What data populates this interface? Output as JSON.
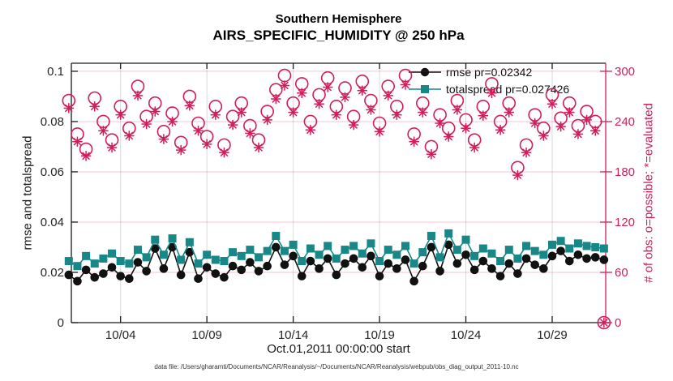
{
  "title": {
    "line1": "Southern Hemisphere",
    "line2": "AIRS_SPECIFIC_HUMIDITY @ 250 hPa"
  },
  "footer": {
    "data_file": "data file: /Users/gharamti/Documents/NCAR/Reanalysis/~/Documents/NCAR/Reanalysis/webpub/obs_diag_output_2011-10.nc"
  },
  "legend": {
    "items": [
      {
        "label": "rmse pr=0.02342",
        "marker": "filled-circle",
        "color": "#111111"
      },
      {
        "label": "totalspread pr=0.027426",
        "marker": "filled-square",
        "color": "#178787"
      }
    ]
  },
  "colors": {
    "rmse": "#111111",
    "totalspread": "#178787",
    "obs_pink": "#D21D5C",
    "grid_pink": "rgba(210,29,92,0.25)",
    "grid_gray": "rgba(0,0,0,0.15)",
    "axis_dark": "#1a1a1a",
    "tick_label": "#262626"
  },
  "chart_data": {
    "type": "line",
    "title": "Southern Hemisphere — AIRS_SPECIFIC_HUMIDITY @ 250 hPa",
    "xlabel": "Oct.01,2011 00:00:00 start",
    "ylabel_left": "rmse and totalspread",
    "ylabel_right": "# of obs: o=possible; *=evaluated",
    "grid": true,
    "legend_position": "upper-right-inside",
    "xlim_days": [
      1.15,
      32.1
    ],
    "ylim_left": [
      0,
      0.1032
    ],
    "ylim_right": [
      0,
      309.6
    ],
    "x_ticks": {
      "values": [
        4,
        9,
        14,
        19,
        24,
        29
      ],
      "labels": [
        "10/04",
        "10/09",
        "10/14",
        "10/19",
        "10/24",
        "10/29"
      ]
    },
    "y_ticks_left": {
      "values": [
        0,
        0.02,
        0.04,
        0.06,
        0.08,
        0.1
      ],
      "labels": [
        "0",
        "0.02",
        "0.04",
        "0.06",
        "0.08",
        "0.1"
      ]
    },
    "y_ticks_right": {
      "values": [
        0,
        60,
        120,
        180,
        240,
        300
      ],
      "labels": [
        "0",
        "60",
        "120",
        "180",
        "240",
        "300"
      ]
    },
    "x": [
      1,
      1.5,
      2,
      2.5,
      3,
      3.5,
      4,
      4.5,
      5,
      5.5,
      6,
      6.5,
      7,
      7.5,
      8,
      8.5,
      9,
      9.5,
      10,
      10.5,
      11,
      11.5,
      12,
      12.5,
      13,
      13.5,
      14,
      14.5,
      15,
      15.5,
      16,
      16.5,
      17,
      17.5,
      18,
      18.5,
      19,
      19.5,
      20,
      20.5,
      21,
      21.5,
      22,
      22.5,
      23,
      23.5,
      24,
      24.5,
      25,
      25.5,
      26,
      26.5,
      27,
      27.5,
      28,
      28.5,
      29,
      29.5,
      30,
      30.5,
      31,
      31.5,
      32
    ],
    "series": [
      {
        "name": "rmse",
        "axis": "left",
        "style": "line",
        "marker": "filled-circle",
        "color": "#111111",
        "values": [
          0.019,
          0.0165,
          0.021,
          0.018,
          0.0195,
          0.022,
          0.0185,
          0.0175,
          0.024,
          0.0205,
          0.0295,
          0.0215,
          0.03,
          0.019,
          0.028,
          0.0175,
          0.022,
          0.0195,
          0.018,
          0.0225,
          0.021,
          0.024,
          0.0205,
          0.0225,
          0.03,
          0.023,
          0.0265,
          0.0185,
          0.0245,
          0.0215,
          0.0255,
          0.019,
          0.0235,
          0.0255,
          0.022,
          0.0265,
          0.0185,
          0.0235,
          0.0215,
          0.025,
          0.0165,
          0.0225,
          0.03,
          0.0205,
          0.031,
          0.0235,
          0.027,
          0.021,
          0.0245,
          0.0215,
          0.0185,
          0.0235,
          0.0195,
          0.0255,
          0.023,
          0.0215,
          0.0265,
          0.0285,
          0.0245,
          0.027,
          0.0255,
          0.026,
          0.025
        ]
      },
      {
        "name": "totalspread",
        "axis": "left",
        "style": "line",
        "marker": "filled-square",
        "color": "#178787",
        "values": [
          0.0245,
          0.0225,
          0.0265,
          0.0235,
          0.0255,
          0.0275,
          0.0245,
          0.0235,
          0.029,
          0.026,
          0.033,
          0.027,
          0.0335,
          0.025,
          0.032,
          0.0235,
          0.027,
          0.025,
          0.0245,
          0.028,
          0.0265,
          0.029,
          0.026,
          0.0285,
          0.0345,
          0.0285,
          0.031,
          0.0245,
          0.0295,
          0.027,
          0.0305,
          0.0255,
          0.029,
          0.0305,
          0.0275,
          0.0315,
          0.0245,
          0.029,
          0.027,
          0.0305,
          0.0235,
          0.028,
          0.0345,
          0.026,
          0.0355,
          0.029,
          0.033,
          0.0265,
          0.0295,
          0.0275,
          0.0245,
          0.029,
          0.0255,
          0.0305,
          0.0285,
          0.027,
          0.031,
          0.0325,
          0.0295,
          0.0315,
          0.0305,
          0.03,
          0.0295
        ]
      },
      {
        "name": "possible obs",
        "axis": "right",
        "style": "scatter",
        "marker": "open-circle",
        "color": "#D21D5C",
        "values": [
          265,
          225,
          207,
          268,
          240,
          218,
          258,
          232,
          282,
          246,
          262,
          228,
          250,
          215,
          270,
          238,
          222,
          258,
          212,
          246,
          262,
          235,
          218,
          252,
          278,
          295,
          262,
          285,
          240,
          272,
          292,
          258,
          280,
          246,
          288,
          265,
          238,
          282,
          258,
          295,
          225,
          262,
          210,
          248,
          232,
          265,
          242,
          218,
          258,
          285,
          240,
          262,
          185,
          212,
          248,
          232,
          272,
          244,
          262,
          235,
          252,
          240,
          0
        ]
      },
      {
        "name": "evaluated obs",
        "axis": "right",
        "style": "scatter",
        "marker": "asterisk",
        "color": "#D21D5C",
        "values": [
          256,
          216,
          199,
          258,
          229,
          209,
          248,
          223,
          271,
          237,
          252,
          219,
          240,
          206,
          259,
          229,
          213,
          248,
          203,
          236,
          251,
          226,
          209,
          242,
          267,
          283,
          251,
          274,
          230,
          261,
          281,
          248,
          269,
          236,
          277,
          254,
          228,
          271,
          248,
          284,
          216,
          251,
          201,
          238,
          222,
          254,
          232,
          209,
          247,
          274,
          230,
          251,
          176,
          203,
          238,
          223,
          261,
          234,
          251,
          225,
          242,
          229,
          0
        ]
      }
    ]
  }
}
